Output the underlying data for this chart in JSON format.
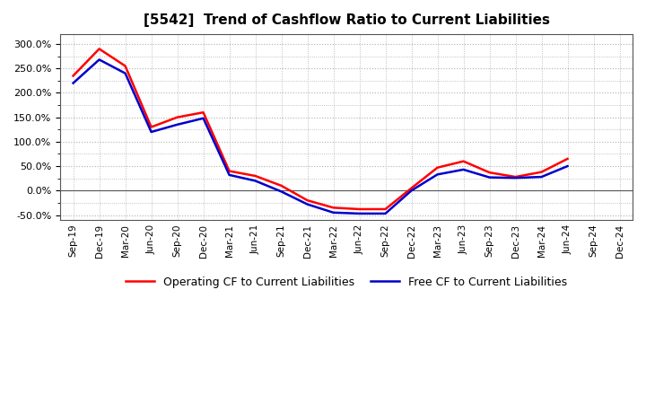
{
  "title": "[5542]  Trend of Cashflow Ratio to Current Liabilities",
  "x_labels": [
    "Sep-19",
    "Dec-19",
    "Mar-20",
    "Jun-20",
    "Sep-20",
    "Dec-20",
    "Mar-21",
    "Jun-21",
    "Sep-21",
    "Dec-21",
    "Mar-22",
    "Jun-22",
    "Sep-22",
    "Dec-22",
    "Mar-23",
    "Jun-23",
    "Sep-23",
    "Dec-23",
    "Mar-24",
    "Jun-24",
    "Sep-24",
    "Dec-24"
  ],
  "operating_cf": [
    2.35,
    2.9,
    2.55,
    1.3,
    1.5,
    1.6,
    0.4,
    0.3,
    0.1,
    -0.2,
    -0.35,
    -0.38,
    -0.38,
    0.05,
    0.47,
    0.6,
    0.37,
    0.28,
    0.38,
    0.65,
    null,
    null
  ],
  "free_cf": [
    2.2,
    2.68,
    2.4,
    1.2,
    1.35,
    1.48,
    0.32,
    0.2,
    -0.02,
    -0.28,
    -0.45,
    -0.47,
    -0.47,
    0.0,
    0.33,
    0.43,
    0.27,
    0.26,
    0.28,
    0.5,
    null,
    null
  ],
  "operating_color": "#ff0000",
  "free_color": "#0000cc",
  "ylim_min": -0.6,
  "ylim_max": 3.2,
  "ytick_major": [
    -0.5,
    0.0,
    0.5,
    1.0,
    1.5,
    2.0,
    2.5,
    3.0
  ],
  "ytick_all": [
    -0.5,
    -0.25,
    0.0,
    0.25,
    0.5,
    0.75,
    1.0,
    1.25,
    1.5,
    1.75,
    2.0,
    2.25,
    2.5,
    2.75,
    3.0
  ],
  "legend_op": "Operating CF to Current Liabilities",
  "legend_free": "Free CF to Current Liabilities",
  "bg_color": "#ffffff",
  "grid_color": "#b0b0b0"
}
